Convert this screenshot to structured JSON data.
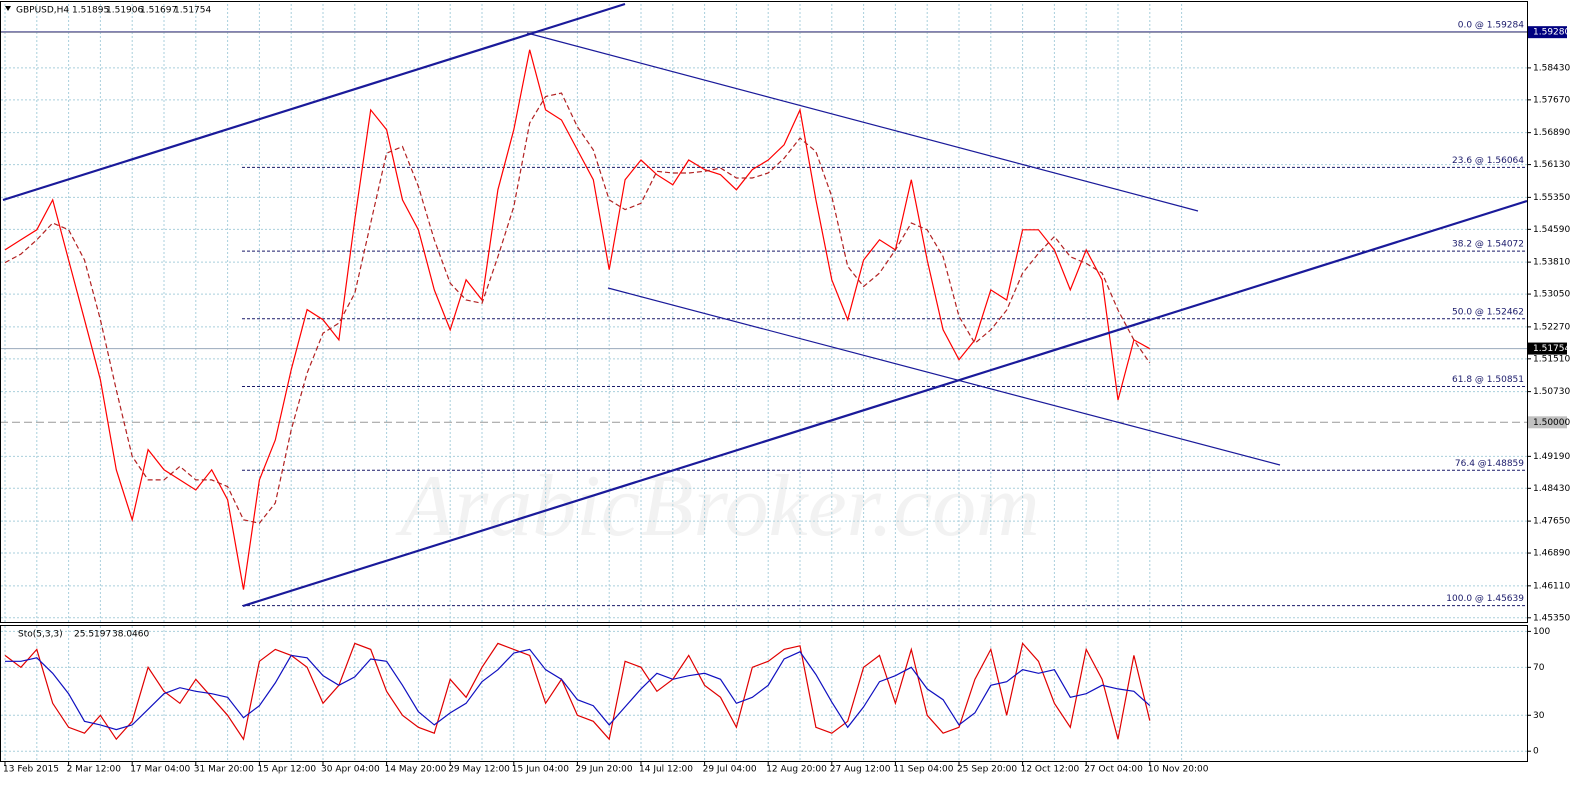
{
  "chart_data": [
    {
      "type": "line",
      "title": "GBPUSD,H4",
      "quote": [
        1.51895,
        1.51906,
        1.51697,
        1.51754
      ],
      "watermark": "ArabicBroker.com",
      "categories": [
        "13 Feb 2015",
        null,
        null,
        null,
        "2 Mar 12:00",
        null,
        null,
        null,
        "17 Mar 04:00",
        null,
        null,
        null,
        "31 Mar 20:00",
        null,
        null,
        null,
        "15 Apr 12:00",
        null,
        null,
        null,
        "30 Apr 04:00",
        null,
        null,
        null,
        "14 May 20:00",
        null,
        null,
        null,
        "29 May 12:00",
        null,
        null,
        null,
        "15 Jun 04:00",
        null,
        null,
        null,
        "29 Jun 20:00",
        null,
        null,
        null,
        "14 Jul 12:00",
        null,
        null,
        null,
        "29 Jul 04:00",
        null,
        null,
        null,
        "12 Aug 20:00",
        null,
        null,
        null,
        "27 Aug 12:00",
        null,
        null,
        null,
        "11 Sep 04:00",
        null,
        null,
        null,
        "25 Sep 20:00",
        null,
        null,
        null,
        "12 Oct 12:00",
        null,
        null,
        null,
        "27 Oct 04:00",
        null,
        null,
        null,
        "10 Nov 20:00",
        null,
        null,
        null
      ],
      "series": [
        {
          "color": "#ff0000",
          "values": [
            1.541,
            1.5434,
            1.5458,
            1.5529,
            1.5386,
            1.5244,
            1.5101,
            1.4887,
            1.4768,
            1.4935,
            1.4887,
            1.4863,
            1.4839,
            1.4887,
            1.4816,
            1.4602,
            1.4863,
            1.4958,
            1.5125,
            1.5268,
            1.5244,
            1.5196,
            1.5482,
            1.5743,
            1.5696,
            1.5529,
            1.5458,
            1.5315,
            1.522,
            1.5339,
            1.5291,
            1.5553,
            1.5696,
            1.5886,
            1.5743,
            1.5719,
            1.5648,
            1.5577,
            1.5363,
            1.5577,
            1.5624,
            1.5589,
            1.5565,
            1.5624,
            1.5601,
            1.5589,
            1.5553,
            1.5601,
            1.5624,
            1.566,
            1.5743,
            1.5529,
            1.5339,
            1.5244,
            1.5386,
            1.5434,
            1.541,
            1.5577,
            1.5386,
            1.522,
            1.5149,
            1.5196,
            1.5315,
            1.5291,
            1.5458,
            1.5458,
            1.541,
            1.5315,
            1.541,
            1.5339,
            1.5053,
            1.5196,
            1.5175,
            null,
            null,
            null
          ]
        },
        {
          "color": "#b22222",
          "dashed": true,
          "values": [
            1.538,
            1.54,
            1.5434,
            1.5474,
            1.5458,
            1.5386,
            1.5244,
            1.5077,
            1.4919,
            1.4863,
            1.4863,
            1.4895,
            1.4863,
            1.4863,
            1.4847,
            1.4768,
            1.476,
            1.4808,
            1.4982,
            1.5117,
            1.5212,
            1.5236,
            1.5307,
            1.5474,
            1.564,
            1.5656,
            1.5561,
            1.5434,
            1.5331,
            1.5291,
            1.5283,
            1.5394,
            1.5513,
            1.5712,
            1.5775,
            1.5783,
            1.5703,
            1.5648,
            1.5529,
            1.5506,
            1.5521,
            1.5597,
            1.5593,
            1.5593,
            1.5597,
            1.5605,
            1.5581,
            1.5581,
            1.5593,
            1.5628,
            1.5676,
            1.5644,
            1.5537,
            1.5371,
            1.5323,
            1.5355,
            1.541,
            1.5474,
            1.5458,
            1.5394,
            1.5252,
            1.5188,
            1.522,
            1.5267,
            1.5355,
            1.5402,
            1.5442,
            1.5394,
            1.5378,
            1.5355,
            1.5267,
            1.5196,
            1.5141,
            null,
            null,
            null
          ]
        }
      ],
      "fib_levels": [
        {
          "value": 1.59284,
          "label": "0.0 @ 1.59284"
        },
        {
          "value": 1.56064,
          "label": "23.6 @ 1.56064"
        },
        {
          "value": 1.54072,
          "label": "38.2 @ 1.54072"
        },
        {
          "value": 1.52462,
          "label": "50.0 @ 1.52462"
        },
        {
          "value": 1.50851,
          "label": "61.8 @ 1.50851"
        },
        {
          "value": 1.48859,
          "label": "76.4 @1.48859"
        },
        {
          "value": 1.45639,
          "label": "100.0 @ 1.45639"
        }
      ],
      "markers": [
        {
          "value": 1.5928,
          "label": "1.59280",
          "color": "#000080"
        },
        {
          "value": 1.51754,
          "label": "1.51754",
          "color": "#000000"
        },
        {
          "value": 1.5,
          "label": "1.50000",
          "color": "#c0c0c0"
        }
      ],
      "ylim": [
        1.4525,
        1.5995
      ],
      "yticks": [
        {
          "value": 1.5843,
          "label": "1.58430"
        },
        {
          "value": 1.5767,
          "label": "1.57670"
        },
        {
          "value": 1.5689,
          "label": "1.56890"
        },
        {
          "value": 1.5613,
          "label": "1.56130"
        },
        {
          "value": 1.5535,
          "label": "1.55350"
        },
        {
          "value": 1.5459,
          "label": "1.54590"
        },
        {
          "value": 1.5381,
          "label": "1.53810"
        },
        {
          "value": 1.5305,
          "label": "1.53050"
        },
        {
          "value": 1.5227,
          "label": "1.52270"
        },
        {
          "value": 1.5151,
          "label": "1.51510"
        },
        {
          "value": 1.5073,
          "label": "1.50730"
        },
        {
          "value": 1.4919,
          "label": "1.49190"
        },
        {
          "value": 1.4843,
          "label": "1.48430"
        },
        {
          "value": 1.4765,
          "label": "1.47650"
        },
        {
          "value": 1.4689,
          "label": "1.46890"
        },
        {
          "value": 1.4611,
          "label": "1.46110"
        },
        {
          "value": 1.4535,
          "label": "1.45350"
        }
      ],
      "grid": true
    },
    {
      "type": "line",
      "title": "Sto(5,3,3)",
      "readings": [
        25.5197,
        {
          "value": 38.046,
          "label": "38.0460"
        }
      ],
      "series": [
        {
          "color": "#e00000",
          "values": [
            80,
            70,
            85,
            40,
            20,
            15,
            30,
            10,
            25,
            70,
            50,
            40,
            60,
            45,
            30,
            10,
            75,
            85,
            80,
            70,
            40,
            55,
            90,
            85,
            50,
            30,
            20,
            15,
            60,
            45,
            70,
            90,
            85,
            80,
            40,
            60,
            30,
            25,
            10,
            75,
            70,
            50,
            60,
            80,
            55,
            45,
            20,
            70,
            75,
            85,
            88,
            20,
            15,
            25,
            70,
            80,
            40,
            85,
            30,
            15,
            20,
            60,
            85,
            30,
            90,
            75,
            40,
            20,
            85,
            60,
            10,
            80,
            25.5197,
            null,
            null,
            null
          ]
        },
        {
          "color": "#1010c0",
          "values": [
            75,
            75,
            78,
            65,
            48,
            25,
            22,
            18,
            22,
            35,
            48,
            53,
            50,
            48,
            45,
            28,
            38,
            57,
            80,
            78,
            63,
            55,
            62,
            77,
            75,
            55,
            33,
            22,
            32,
            40,
            58,
            68,
            82,
            85,
            68,
            60,
            43,
            38,
            22,
            37,
            52,
            65,
            60,
            63,
            65,
            60,
            40,
            45,
            55,
            77,
            83,
            64,
            41,
            20,
            37,
            58,
            63,
            70,
            52,
            43,
            22,
            32,
            55,
            58,
            68,
            65,
            68,
            45,
            48,
            55,
            52,
            50,
            38.046,
            null,
            null,
            null
          ]
        }
      ],
      "ylim": [
        -9,
        104.5
      ],
      "yticks": [
        100,
        70,
        30,
        0
      ],
      "grid": true
    }
  ]
}
